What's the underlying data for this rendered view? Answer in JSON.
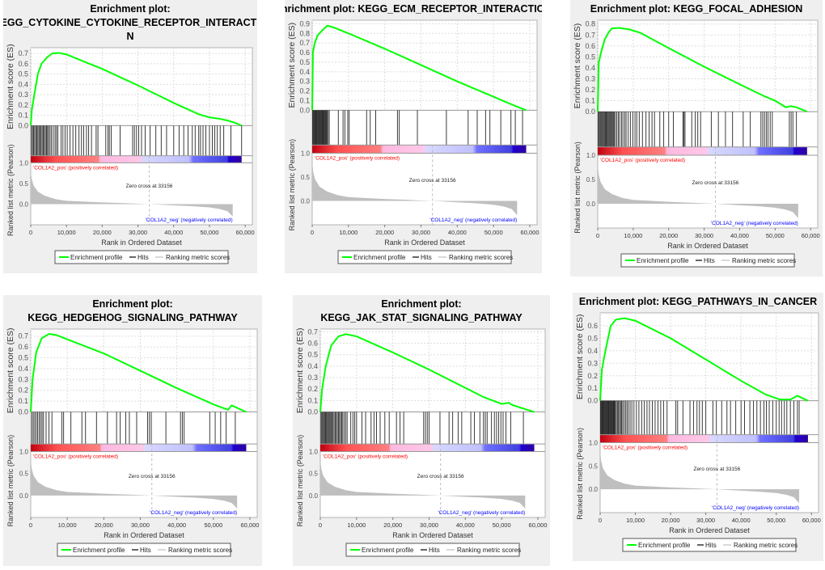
{
  "chart_data": [
    {
      "type": "line",
      "title_lines": [
        "Enrichment plot:",
        "KEGG_CYTOKINE_CYTOKINE_RECEPTOR_INTERACTIO",
        "N"
      ],
      "ylabel": "Enrichment score (ES)",
      "es_ticks": [
        0.0,
        0.1,
        0.2,
        0.3,
        0.4,
        0.5,
        0.6,
        0.7
      ],
      "es_ylim": [
        0,
        0.74
      ],
      "es_curve": [
        [
          0,
          0
        ],
        [
          300,
          0.15
        ],
        [
          1000,
          0.3
        ],
        [
          2000,
          0.5
        ],
        [
          3000,
          0.6
        ],
        [
          4500,
          0.66
        ],
        [
          6000,
          0.7
        ],
        [
          8000,
          0.705
        ],
        [
          10000,
          0.69
        ],
        [
          15000,
          0.62
        ],
        [
          20000,
          0.55
        ],
        [
          30000,
          0.39
        ],
        [
          40000,
          0.22
        ],
        [
          47000,
          0.11
        ],
        [
          50000,
          0.08
        ],
        [
          53000,
          0.065
        ],
        [
          55000,
          0.05
        ],
        [
          57000,
          0.03
        ],
        [
          59000,
          0
        ]
      ],
      "hits": [
        200,
        500,
        800,
        1100,
        1400,
        1700,
        2000,
        2300,
        2600,
        2900,
        3200,
        3500,
        3800,
        4100,
        4400,
        4700,
        5000,
        5400,
        5800,
        6300,
        6800,
        7200,
        7600,
        8500,
        9000,
        9600,
        10200,
        11000,
        11800,
        12600,
        13500,
        14200,
        14800,
        15600,
        16200,
        17000,
        18300,
        18800,
        21000,
        21600,
        22000,
        22500,
        25000,
        28500,
        29000,
        29600,
        30200,
        31000,
        32000,
        33400,
        35000,
        36500,
        38000,
        40000,
        41500,
        42800,
        44000,
        45200,
        46000,
        47000,
        47500,
        48200,
        49000,
        50000,
        50800,
        51500,
        52200,
        53000,
        54000,
        56000,
        59000
      ]
    },
    {
      "type": "line",
      "title_lines": [
        "Enrichment plot: KEGG_ECM_RECEPTOR_INTERACTION"
      ],
      "ylabel": "Enrichment score (ES)",
      "es_ticks": [
        0.0,
        0.1,
        0.2,
        0.3,
        0.4,
        0.5,
        0.6,
        0.7,
        0.8,
        0.9
      ],
      "es_ylim": [
        0,
        0.92
      ],
      "es_curve": [
        [
          0,
          0
        ],
        [
          200,
          0.6
        ],
        [
          700,
          0.7
        ],
        [
          1500,
          0.78
        ],
        [
          3000,
          0.84
        ],
        [
          4200,
          0.88
        ],
        [
          6000,
          0.86
        ],
        [
          10000,
          0.8
        ],
        [
          20000,
          0.64
        ],
        [
          30000,
          0.47
        ],
        [
          40000,
          0.3
        ],
        [
          50000,
          0.14
        ],
        [
          55000,
          0.06
        ],
        [
          59000,
          0
        ]
      ],
      "hits": [
        100,
        300,
        500,
        700,
        900,
        1100,
        1300,
        1500,
        1700,
        1900,
        2100,
        2300,
        2500,
        2700,
        2900,
        3100,
        3300,
        3500,
        3700,
        3900,
        4100,
        4400,
        4700,
        7200,
        8500,
        9000,
        9800,
        10200,
        15000,
        16000,
        17500,
        23500,
        24000,
        29000,
        37000,
        43000,
        45500,
        47800,
        49000,
        52000,
        54800,
        56000,
        58000
      ]
    },
    {
      "type": "line",
      "title_lines": [
        "Enrichment plot: KEGG_FOCAL_ADHESION"
      ],
      "ylabel": "Enrichment score (ES)",
      "es_ticks": [
        0.0,
        0.1,
        0.2,
        0.3,
        0.4,
        0.5,
        0.6,
        0.7,
        0.8
      ],
      "es_ylim": [
        0,
        0.82
      ],
      "es_curve": [
        [
          0,
          0
        ],
        [
          300,
          0.45
        ],
        [
          1000,
          0.55
        ],
        [
          2000,
          0.66
        ],
        [
          3000,
          0.72
        ],
        [
          4000,
          0.76
        ],
        [
          6000,
          0.765
        ],
        [
          9000,
          0.75
        ],
        [
          12000,
          0.72
        ],
        [
          20000,
          0.58
        ],
        [
          30000,
          0.41
        ],
        [
          40000,
          0.25
        ],
        [
          47000,
          0.14
        ],
        [
          50000,
          0.1
        ],
        [
          53000,
          0.04
        ],
        [
          54500,
          0.05
        ],
        [
          56000,
          0.04
        ],
        [
          59000,
          0
        ]
      ],
      "hits": [
        150,
        400,
        650,
        900,
        1150,
        1400,
        1650,
        1900,
        2150,
        2400,
        2650,
        2900,
        3150,
        3400,
        3650,
        3900,
        4150,
        4400,
        4650,
        5000,
        5400,
        5800,
        6200,
        6700,
        7100,
        7600,
        8000,
        8600,
        9200,
        9900,
        10500,
        11000,
        11700,
        12600,
        13600,
        14500,
        15300,
        16000,
        17500,
        18600,
        20000,
        21300,
        24000,
        24300,
        24600,
        26500,
        27500,
        28200,
        29000,
        32000,
        34000,
        36000,
        38000,
        41000,
        43000,
        46000,
        46500,
        47000,
        47500,
        48000,
        48600,
        49200,
        54000,
        54500,
        55000,
        56000
      ]
    },
    {
      "type": "line",
      "title_lines": [
        "Enrichment plot:",
        "KEGG_HEDGEHOG_SIGNALING_PATHWAY"
      ],
      "ylabel": "Enrichment score (ES)",
      "es_ticks": [
        0.0,
        0.1,
        0.2,
        0.3,
        0.4,
        0.5,
        0.6,
        0.7
      ],
      "es_ylim": [
        0,
        0.75
      ],
      "es_curve": [
        [
          0,
          0
        ],
        [
          500,
          0.3
        ],
        [
          1500,
          0.55
        ],
        [
          3000,
          0.68
        ],
        [
          5000,
          0.72
        ],
        [
          7000,
          0.71
        ],
        [
          10000,
          0.67
        ],
        [
          20000,
          0.54
        ],
        [
          30000,
          0.38
        ],
        [
          40000,
          0.22
        ],
        [
          50000,
          0.07
        ],
        [
          54000,
          0.02
        ],
        [
          55000,
          0.06
        ],
        [
          59000,
          0
        ]
      ],
      "hits": [
        300,
        700,
        1100,
        1500,
        1900,
        2300,
        2700,
        3100,
        3500,
        4200,
        5000,
        5800,
        8500,
        9000,
        11000,
        14000,
        15000,
        18000,
        21000,
        23500,
        24500,
        26000,
        27000,
        29000,
        32000,
        32500,
        33000,
        37000,
        41000,
        41500,
        42000,
        49000,
        50500,
        52000,
        53500,
        56000
      ]
    },
    {
      "type": "line",
      "title_lines": [
        "Enrichment plot:",
        "KEGG_JAK_STAT_SIGNALING_PATHWAY"
      ],
      "ylabel": "Enrichment score (ES)",
      "es_ticks": [
        0.0,
        0.1,
        0.2,
        0.3,
        0.4,
        0.5,
        0.6,
        0.7
      ],
      "es_ylim": [
        0,
        0.71
      ],
      "es_curve": [
        [
          0,
          0
        ],
        [
          500,
          0.2
        ],
        [
          1500,
          0.4
        ],
        [
          3000,
          0.58
        ],
        [
          5000,
          0.66
        ],
        [
          7000,
          0.68
        ],
        [
          10000,
          0.66
        ],
        [
          20000,
          0.52
        ],
        [
          30000,
          0.37
        ],
        [
          40000,
          0.21
        ],
        [
          45000,
          0.13
        ],
        [
          50000,
          0.07
        ],
        [
          52000,
          0.08
        ],
        [
          53000,
          0.06
        ],
        [
          56000,
          0.03
        ],
        [
          59000,
          0
        ]
      ],
      "hits": [
        200,
        450,
        700,
        950,
        1200,
        1450,
        1700,
        1950,
        2200,
        2450,
        2700,
        2950,
        3200,
        3500,
        3800,
        4100,
        4400,
        4700,
        5000,
        5300,
        5600,
        5900,
        6200,
        6600,
        7000,
        7400,
        8400,
        9000,
        9500,
        10000,
        11500,
        12500,
        14000,
        14800,
        15500,
        16500,
        17800,
        19000,
        21000,
        22000,
        23000,
        28500,
        29000,
        29500,
        30000,
        33000,
        35500,
        36500,
        38000,
        39000,
        41500,
        42500,
        44000,
        45000,
        45500,
        46000,
        47200,
        48000,
        48600,
        49200,
        49800,
        50400,
        51200,
        52500,
        56000
      ]
    },
    {
      "type": "line",
      "title_lines": [
        "Enrichment plot: KEGG_PATHWAYS_IN_CANCER"
      ],
      "ylabel": "Enrichment score (ES)",
      "es_ticks": [
        0.0,
        0.1,
        0.2,
        0.3,
        0.4,
        0.5,
        0.6
      ],
      "es_ylim": [
        0,
        0.69
      ],
      "es_curve": [
        [
          0,
          0
        ],
        [
          500,
          0.25
        ],
        [
          1500,
          0.4
        ],
        [
          3000,
          0.6
        ],
        [
          4500,
          0.65
        ],
        [
          7000,
          0.66
        ],
        [
          10000,
          0.64
        ],
        [
          20000,
          0.5
        ],
        [
          30000,
          0.33
        ],
        [
          40000,
          0.16
        ],
        [
          47000,
          0.05
        ],
        [
          51000,
          0.01
        ],
        [
          54000,
          0.01
        ],
        [
          56000,
          0.04
        ],
        [
          59000,
          0
        ]
      ],
      "hits": [
        100,
        300,
        500,
        700,
        900,
        1100,
        1300,
        1500,
        1700,
        1900,
        2100,
        2300,
        2500,
        2700,
        2900,
        3100,
        3300,
        3500,
        3700,
        3900,
        4100,
        4300,
        4600,
        4900,
        5200,
        5500,
        5800,
        6100,
        6400,
        6800,
        7200,
        7600,
        8000,
        8500,
        9000,
        9600,
        10300,
        11000,
        11800,
        12500,
        13300,
        14000,
        14800,
        15600,
        16400,
        17200,
        18000,
        19000,
        21500,
        22000,
        23500,
        25500,
        26500,
        27500,
        28200,
        29000,
        30000,
        32000,
        33000,
        34500,
        36000,
        37000,
        38500,
        40000,
        41000,
        42500,
        43500,
        44500,
        45500,
        46500,
        47200,
        48000,
        49000,
        50000,
        50800,
        51500,
        52300,
        53000,
        54000,
        55000,
        56000,
        56500
      ]
    }
  ],
  "shared": {
    "xlabel": "Rank in Ordered Dataset",
    "xlim": [
      0,
      62000
    ],
    "x_ticks": [
      0,
      10000,
      20000,
      30000,
      40000,
      50000,
      60000
    ],
    "x_tick_labels": [
      "0",
      "10,000",
      "20,000",
      "30,000",
      "40,000",
      "50,000",
      "60,000"
    ],
    "ranked_ylabel": "Ranked list metric (Pearson)",
    "ranked_ticks": [
      1.0,
      0.5,
      0.0
    ],
    "ranked_tick_labels": [
      "1.0",
      "0.5",
      "0.0"
    ],
    "ranked_ylim": [
      -0.5,
      1.0
    ],
    "ranked_metric": [
      [
        0,
        0.8
      ],
      [
        300,
        0.6
      ],
      [
        800,
        0.45
      ],
      [
        2000,
        0.3
      ],
      [
        4000,
        0.2
      ],
      [
        7000,
        0.12
      ],
      [
        10000,
        0.08
      ],
      [
        15000,
        0.06
      ],
      [
        20000,
        0.04
      ],
      [
        27000,
        0.02
      ],
      [
        33156,
        0
      ],
      [
        40000,
        -0.03
      ],
      [
        45000,
        -0.05
      ],
      [
        50000,
        -0.08
      ],
      [
        53000,
        -0.12
      ],
      [
        55000,
        -0.17
      ],
      [
        56300,
        -0.28
      ],
      [
        56500,
        -0.3
      ]
    ],
    "dataset_size": 59000,
    "zero_cross_label": "Zero cross at 33156",
    "zero_cross": 33156,
    "pos_label": "'COL1A2_pos' (positively correlated)",
    "neg_label": "'COL1A2_neg' (negatively correlated)",
    "legend": [
      "Enrichment profile",
      "Hits",
      "Ranking metric scores"
    ],
    "colors": {
      "es_line": "#00ff00",
      "hits": "#000000",
      "ranked_fill": "#bfbfbf",
      "pos": "#ff0000",
      "neg": "#0000ff",
      "panel_bg": "#efefef"
    }
  }
}
